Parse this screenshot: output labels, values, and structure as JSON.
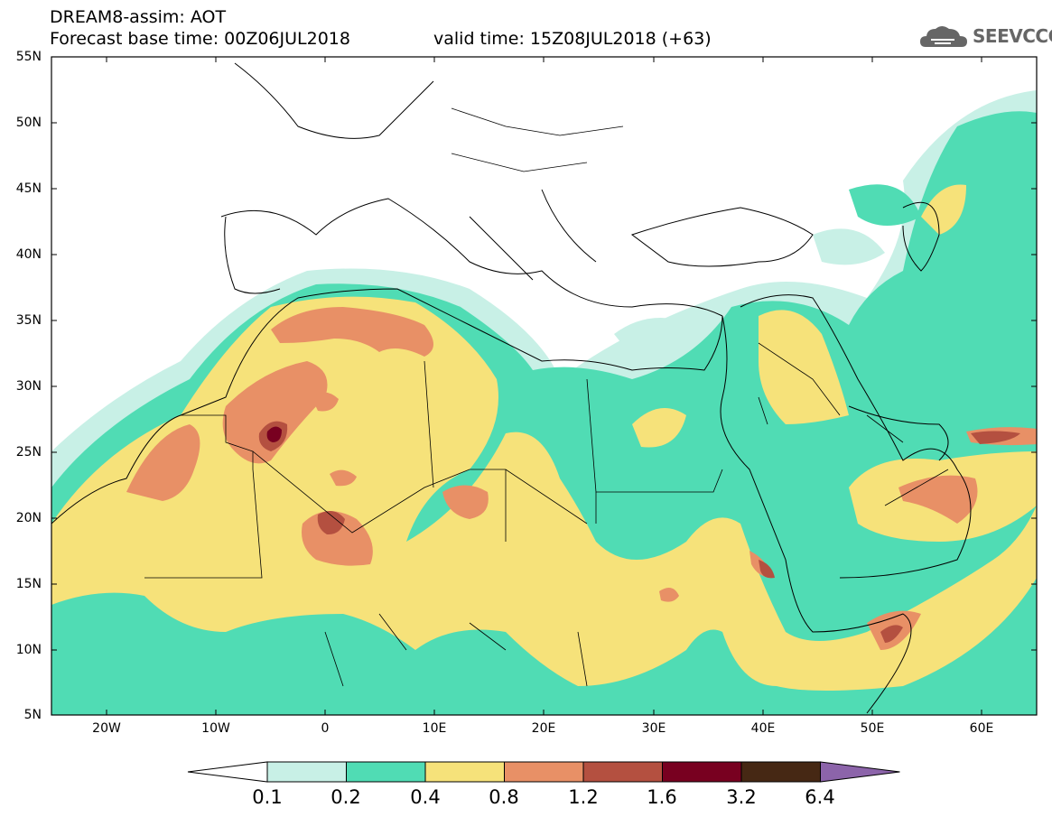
{
  "header": {
    "title": "DREAM8-assim: AOT",
    "base_time": "Forecast base time: 00Z06JUL2018",
    "valid_time": "valid time: 15Z08JUL2018 (+63)",
    "logo_text": "SEEVCCC"
  },
  "map": {
    "variable": "AOT",
    "lat_range": [
      5,
      55
    ],
    "lon_range": [
      -25,
      65
    ],
    "lat_ticks": [
      "55N",
      "50N",
      "45N",
      "40N",
      "35N",
      "30N",
      "25N",
      "20N",
      "15N",
      "10N",
      "5N"
    ],
    "lon_ticks": [
      "20W",
      "10W",
      "0",
      "10E",
      "20E",
      "30E",
      "40E",
      "50E",
      "60E"
    ]
  },
  "colorbar": {
    "labels": [
      "0.1",
      "0.2",
      "0.4",
      "0.8",
      "1.2",
      "1.6",
      "3.2",
      "6.4"
    ],
    "colors": [
      "#ffffff",
      "#c8f0e6",
      "#50dcb4",
      "#f6e27a",
      "#e89066",
      "#b45040",
      "#780020",
      "#462814",
      "#8c64aa"
    ]
  }
}
